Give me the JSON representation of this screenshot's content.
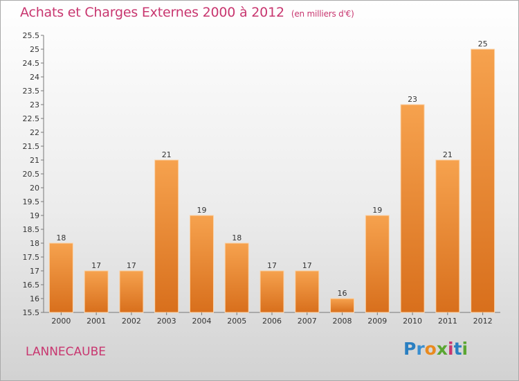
{
  "chart_data": {
    "type": "bar",
    "title": "Achats et Charges Externes 2000 à 2012",
    "subtitle": "(en milliers d'€)",
    "categories": [
      "2000",
      "2001",
      "2002",
      "2003",
      "2004",
      "2005",
      "2006",
      "2007",
      "2008",
      "2009",
      "2010",
      "2011",
      "2012"
    ],
    "values": [
      18,
      17,
      17,
      21,
      19,
      18,
      17,
      17,
      16,
      19,
      23,
      21,
      25
    ],
    "value_labels": [
      "18",
      "17",
      "17",
      "21",
      "19",
      "18",
      "17",
      "17",
      "16",
      "19",
      "23",
      "21",
      "25"
    ],
    "ylim": [
      15.5,
      25.5
    ],
    "yticks": [
      "15.5",
      "16",
      "16.5",
      "17",
      "17.5",
      "18",
      "18.5",
      "19",
      "19.5",
      "20",
      "20.5",
      "21",
      "21.5",
      "22",
      "22.5",
      "23",
      "23.5",
      "24",
      "24.5",
      "25",
      "25.5"
    ],
    "xlabel": "",
    "ylabel": "",
    "grid": false,
    "bar_color_top": "#f6a24e",
    "bar_color_bottom": "#d86f1c"
  },
  "commune": "LANNECAUBE",
  "logo": {
    "letters": [
      "P",
      "r",
      "o",
      "x",
      "i",
      "t",
      "i"
    ],
    "colors": [
      "#2a7fc1",
      "#3a8fd0",
      "#e98a1f",
      "#5aa632",
      "#c8366f",
      "#2a7fc1",
      "#5aa632"
    ]
  }
}
